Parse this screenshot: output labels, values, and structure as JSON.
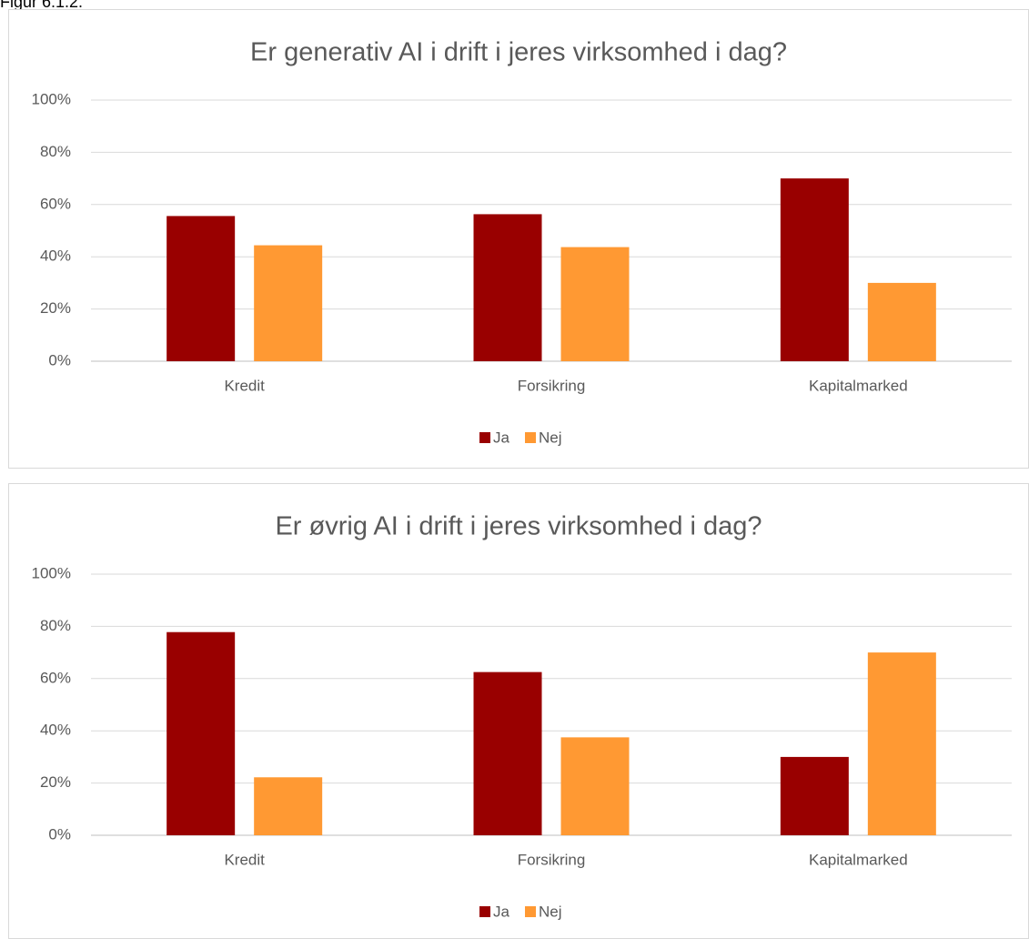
{
  "caption": "Figur 6.1.2.",
  "chart_data": [
    {
      "type": "bar",
      "title": "Er generativ AI i drift i jeres virksomhed i dag?",
      "categories": [
        "Kredit",
        "Forsikring",
        "Kapitalmarked"
      ],
      "series": [
        {
          "name": "Ja",
          "color": "#990000",
          "values": [
            55.6,
            56.3,
            70
          ]
        },
        {
          "name": "Nej",
          "color": "#ff9933",
          "values": [
            44.4,
            43.7,
            30
          ]
        }
      ],
      "ylim": [
        0,
        100
      ],
      "yticks": [
        {
          "value": 0,
          "label": "0%"
        },
        {
          "value": 20,
          "label": "20%"
        },
        {
          "value": 40,
          "label": "40%"
        },
        {
          "value": 60,
          "label": "60%"
        },
        {
          "value": 80,
          "label": "80%"
        },
        {
          "value": 100,
          "label": "100%"
        }
      ],
      "grid": true,
      "legend": "bottom"
    },
    {
      "type": "bar",
      "title": "Er øvrig AI i drift i jeres virksomhed i dag?",
      "categories": [
        "Kredit",
        "Forsikring",
        "Kapitalmarked"
      ],
      "series": [
        {
          "name": "Ja",
          "color": "#990000",
          "values": [
            77.8,
            62.5,
            30
          ]
        },
        {
          "name": "Nej",
          "color": "#ff9933",
          "values": [
            22.2,
            37.5,
            70
          ]
        }
      ],
      "ylim": [
        0,
        100
      ],
      "yticks": [
        {
          "value": 0,
          "label": "0%"
        },
        {
          "value": 20,
          "label": "20%"
        },
        {
          "value": 40,
          "label": "40%"
        },
        {
          "value": 60,
          "label": "60%"
        },
        {
          "value": 80,
          "label": "80%"
        },
        {
          "value": 100,
          "label": "100%"
        }
      ],
      "grid": true,
      "legend": "bottom"
    }
  ]
}
